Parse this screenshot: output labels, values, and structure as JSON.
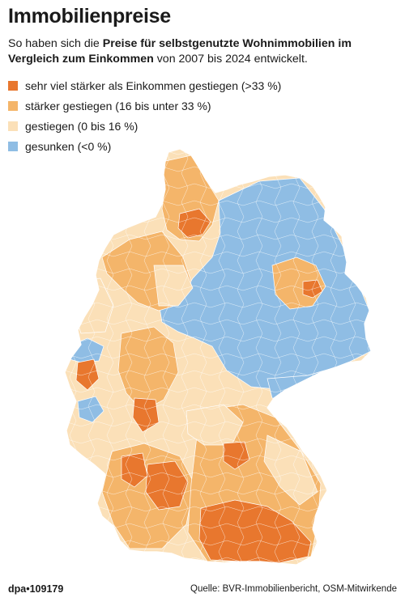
{
  "header": {
    "title": "Immobilienpreise",
    "subtitle_part1": "So haben sich die ",
    "subtitle_bold": "Preise für selbstgenutzte Wohnimmobilien im Vergleich zum Einkommen",
    "subtitle_part2": " von 2007 bis 2024 entwickelt."
  },
  "legend": [
    {
      "label": "sehr viel stärker als Einkommen gestiegen (>33 %)",
      "color": "#e8772e"
    },
    {
      "label": "stärker  gestiegen (16 bis unter 33 %)",
      "color": "#f4b56a"
    },
    {
      "label": "gestiegen (0 bis 16 %)",
      "color": "#fbe0b8"
    },
    {
      "label": "gesunken (<0 %)",
      "color": "#8fbde4"
    }
  ],
  "map": {
    "region": "Deutschland",
    "colors": {
      "very_strong": "#e8772e",
      "strong": "#f4b56a",
      "rose": "#fbe0b8",
      "fell": "#8fbde4",
      "borders": "#ffffff"
    }
  },
  "footer": {
    "id": "dpa•109179",
    "source": "Quelle: BVR-Immobilienbericht, OSM-Mitwirkende"
  }
}
